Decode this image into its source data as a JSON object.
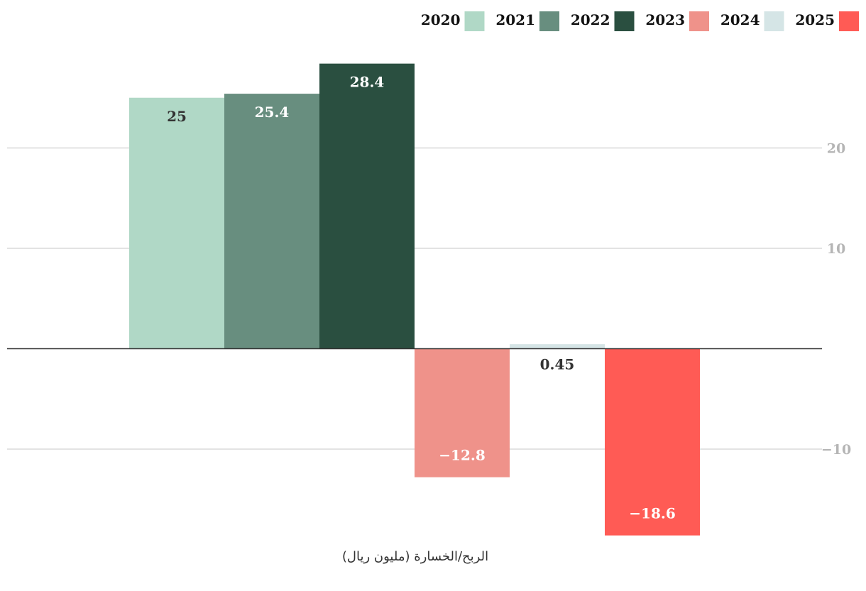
{
  "chart_data": {
    "type": "bar",
    "categories": [
      "2020",
      "2021",
      "2022",
      "2023",
      "2024",
      "2025"
    ],
    "series": [
      {
        "values": [
          25,
          25.4,
          28.4,
          -12.8,
          0.45,
          -18.6
        ],
        "colors": [
          "#b0d8c6",
          "#688e7f",
          "#2a4f40",
          "#ef928a",
          "#d5e5e6",
          "#ff5b55"
        ]
      }
    ],
    "data_labels": [
      "25",
      "25.4",
      "28.4",
      "−12.8",
      "0.45",
      "−18.6"
    ],
    "data_label_colors": [
      "#333333",
      "#ffffff",
      "#ffffff",
      "#ffffff",
      "#333333",
      "#ffffff"
    ],
    "legend": {
      "position": "top-right",
      "entries": [
        {
          "label": "2020",
          "color": "#b0d8c6"
        },
        {
          "label": "2021",
          "color": "#688e7f"
        },
        {
          "label": "2022",
          "color": "#2a4f40"
        },
        {
          "label": "2023",
          "color": "#ef928a"
        },
        {
          "label": "2024",
          "color": "#d5e5e6"
        },
        {
          "label": "2025",
          "color": "#ff5b55"
        }
      ]
    },
    "y_axis": {
      "position": "right",
      "ticks": [
        20,
        10,
        -10
      ],
      "tick_labels": [
        "20",
        "10",
        "−10"
      ],
      "ylim": [
        -19,
        29
      ]
    },
    "xlabel": "الربح/الخسارة (مليون ريال)",
    "grid": true
  }
}
